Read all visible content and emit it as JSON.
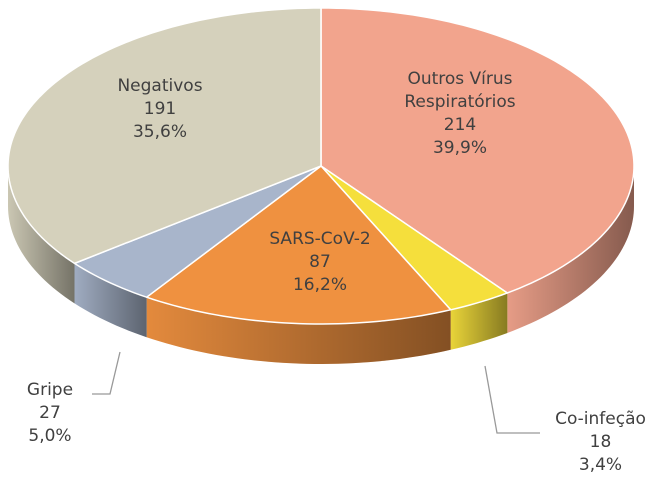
{
  "chart_data": {
    "type": "pie",
    "categories": [
      "Outros Vírus Respiratórios",
      "Co-infeção",
      "SARS-CoV-2",
      "Gripe",
      "Negativos"
    ],
    "values": [
      214,
      18,
      87,
      27,
      191
    ],
    "percent_labels": [
      "39,9%",
      "3,4%",
      "16,2%",
      "5,0%",
      "35,6%"
    ],
    "colors": [
      "#f2a48d",
      "#f5df3c",
      "#ef9140",
      "#a8b5cb",
      "#d5d1bc"
    ]
  }
}
